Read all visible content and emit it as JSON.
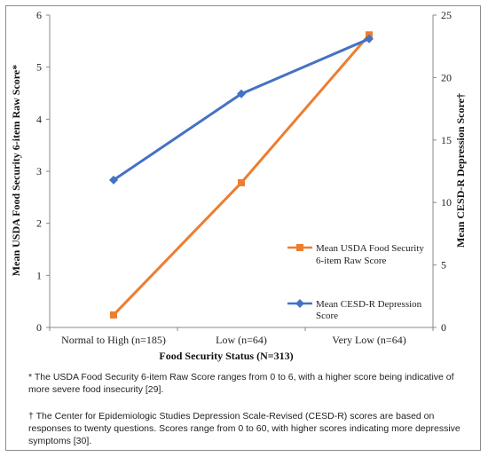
{
  "chart_data": {
    "type": "line",
    "title": "",
    "xlabel": "Food Security Status (N=313)",
    "ylabel_left": "Mean USDA Food Security 6-item Raw Score*",
    "ylabel_right": "Mean CESD-R Depression Score†",
    "categories": [
      "Normal to High (n=185)",
      "Low (n=64)",
      "Very Low (n=64)"
    ],
    "y_left": {
      "range": [
        0,
        6
      ],
      "ticks": [
        "0",
        "1",
        "2",
        "3",
        "4",
        "5",
        "6"
      ]
    },
    "y_right": {
      "range": [
        0,
        25
      ],
      "ticks": [
        "0",
        "5",
        "10",
        "15",
        "20",
        "25"
      ]
    },
    "grid": false,
    "legend_position": "right-inside",
    "series": [
      {
        "name": "Mean USDA Food Security 6-item Raw Score",
        "axis": "left",
        "marker": "square",
        "color": "#ED7D31",
        "values": [
          0.24,
          2.78,
          5.62
        ]
      },
      {
        "name": "Mean CESD-R Depression Score",
        "axis": "right",
        "marker": "diamond",
        "color": "#4472C4",
        "values": [
          11.8,
          18.7,
          23.1
        ]
      }
    ]
  },
  "footnotes": {
    "note1": "* The USDA Food Security 6-item Raw Score ranges from 0 to 6, with a higher score being indicative of more severe food insecurity [29].",
    "note2": "† The Center for Epidemiologic Studies Depression Scale-Revised (CESD-R) scores are based on responses to twenty questions. Scores range from 0 to 60, with higher scores indicating more depressive symptoms [30]."
  }
}
